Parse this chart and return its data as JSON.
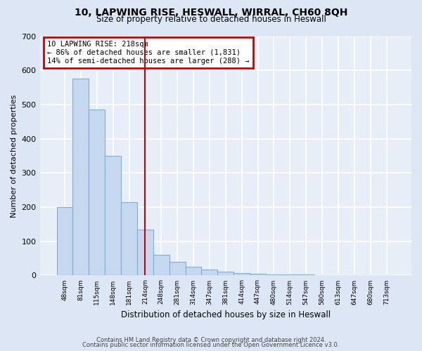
{
  "title1": "10, LAPWING RISE, HESWALL, WIRRAL, CH60 8QH",
  "title2": "Size of property relative to detached houses in Heswall",
  "xlabel": "Distribution of detached houses by size in Heswall",
  "ylabel": "Number of detached properties",
  "categories": [
    "48sqm",
    "81sqm",
    "115sqm",
    "148sqm",
    "181sqm",
    "214sqm",
    "248sqm",
    "281sqm",
    "314sqm",
    "347sqm",
    "381sqm",
    "414sqm",
    "447sqm",
    "480sqm",
    "514sqm",
    "547sqm",
    "580sqm",
    "613sqm",
    "647sqm",
    "680sqm",
    "713sqm"
  ],
  "values": [
    200,
    575,
    485,
    350,
    215,
    135,
    60,
    40,
    25,
    18,
    12,
    8,
    5,
    3,
    2,
    2,
    1,
    0,
    0,
    0,
    0
  ],
  "highlight_index": 5,
  "highlight_color": "#cc0000",
  "bar_color": "#c5d8f0",
  "bar_edge_color": "#7bafd4",
  "annotation_line1": "10 LAPWING RISE: 218sqm",
  "annotation_line2": "← 86% of detached houses are smaller (1,831)",
  "annotation_line3": "14% of semi-detached houses are larger (288) →",
  "annotation_box_color": "#cc0000",
  "footer1": "Contains HM Land Registry data © Crown copyright and database right 2024.",
  "footer2": "Contains public sector information licensed under the Open Government Licence v3.0.",
  "ylim": [
    0,
    700
  ],
  "yticks": [
    0,
    100,
    200,
    300,
    400,
    500,
    600,
    700
  ],
  "background_color": "#dce6f5",
  "plot_bg_color": "#e8eef8"
}
